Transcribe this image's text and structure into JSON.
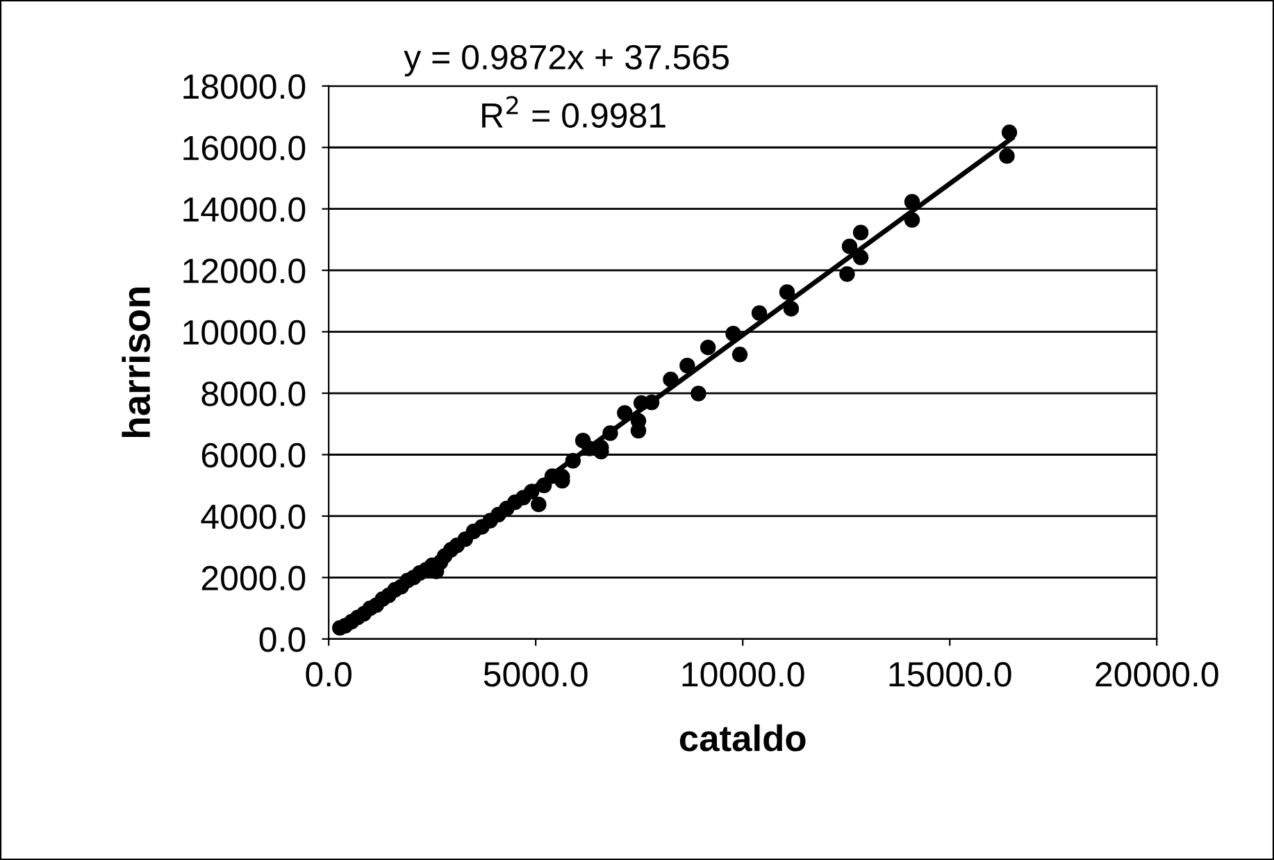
{
  "chart_data": {
    "type": "scatter",
    "xlabel": "cataldo",
    "ylabel": "harrison",
    "annotations": [
      "y = 0.9872x + 37.565",
      "R$^{2}$ = 0.9981"
    ],
    "xlim": [
      0,
      20000
    ],
    "ylim": [
      0,
      18000
    ],
    "xticks": [
      {
        "value": 0,
        "label": "0.0"
      },
      {
        "value": 5000,
        "label": "5000.0"
      },
      {
        "value": 10000,
        "label": "10000.0"
      },
      {
        "value": 15000,
        "label": "15000.0"
      },
      {
        "value": 20000,
        "label": "20000.0"
      }
    ],
    "yticks": [
      {
        "value": 0,
        "label": "0.0"
      },
      {
        "value": 2000,
        "label": "2000.0"
      },
      {
        "value": 4000,
        "label": "4000.0"
      },
      {
        "value": 6000,
        "label": "6000.0"
      },
      {
        "value": 8000,
        "label": "8000.0"
      },
      {
        "value": 10000,
        "label": "10000.0"
      },
      {
        "value": 12000,
        "label": "12000.0"
      },
      {
        "value": 14000,
        "label": "14000.0"
      },
      {
        "value": 16000,
        "label": "16000.0"
      },
      {
        "value": 18000,
        "label": "18000.0"
      }
    ],
    "grid": "y",
    "marker": "circle",
    "series": [
      {
        "color": "#000000",
        "x": [
          270,
          400,
          550,
          700,
          850,
          1000,
          1150,
          1300,
          1450,
          1600,
          1750,
          1900,
          2050,
          2200,
          2350,
          2500,
          2600,
          2700,
          2800,
          2950,
          3100,
          3300,
          3500,
          3700,
          3900,
          4100,
          4300,
          4500,
          4700,
          4900,
          5070,
          5200,
          5400,
          5640,
          5640,
          5900,
          6140,
          6300,
          6580,
          6580,
          6800,
          7150,
          7480,
          7480,
          7550,
          7800,
          8260,
          8660,
          8930,
          9160,
          9770,
          9930,
          10400,
          11070,
          11170,
          12520,
          12580,
          12850,
          12850,
          14090,
          14090,
          16380,
          16440
        ],
        "values": [
          360,
          430,
          560,
          700,
          820,
          1000,
          1100,
          1300,
          1420,
          1600,
          1700,
          1900,
          2000,
          2150,
          2250,
          2400,
          2200,
          2500,
          2700,
          2900,
          3050,
          3250,
          3500,
          3650,
          3850,
          4050,
          4250,
          4450,
          4600,
          4800,
          4380,
          5000,
          5300,
          5150,
          5280,
          5800,
          6460,
          6200,
          6100,
          6230,
          6700,
          7360,
          6780,
          7100,
          7680,
          7700,
          8450,
          8900,
          7990,
          9490,
          9940,
          9260,
          10610,
          11290,
          10750,
          11880,
          12780,
          12420,
          13230,
          13640,
          14230,
          15720,
          16490
        ]
      },
      {
        "type": "line",
        "marker": "none",
        "color": "#000000",
        "x": [
          270,
          16500
        ],
        "values": [
          300,
          16300
        ]
      }
    ]
  }
}
